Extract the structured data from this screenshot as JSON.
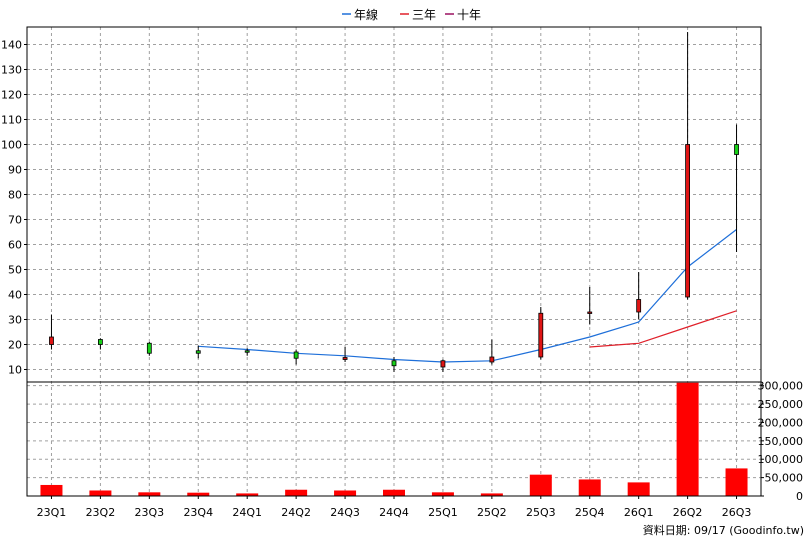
{
  "chart_data": {
    "type": "candlestick",
    "categories": [
      "23Q1",
      "23Q2",
      "23Q3",
      "23Q4",
      "24Q1",
      "24Q2",
      "24Q3",
      "24Q4",
      "25Q1",
      "25Q2",
      "25Q3",
      "25Q4",
      "26Q1",
      "26Q2",
      "26Q3"
    ],
    "legend": [
      {
        "name": "年線",
        "color": "#1e6fd9"
      },
      {
        "name": "三年",
        "color": "#e0202a"
      },
      {
        "name": "十年",
        "color": "#9a1060"
      }
    ],
    "price_axis": {
      "ylim": [
        5,
        147
      ],
      "ticks": [
        10,
        20,
        30,
        40,
        50,
        60,
        70,
        80,
        90,
        100,
        110,
        120,
        130,
        140
      ]
    },
    "volume_axis": {
      "ylim": [
        0,
        310000
      ],
      "ticks": [
        0,
        50000,
        100000,
        150000,
        200000,
        250000,
        300000
      ],
      "tick_labels": [
        "0",
        "50,000",
        "100,000",
        "150,000",
        "200,000",
        "250,000",
        "300,000"
      ]
    },
    "candles": [
      {
        "o": 20,
        "h": 32,
        "l": 18,
        "c": 23
      },
      {
        "o": 22,
        "h": 22.5,
        "l": 18,
        "c": 20
      },
      {
        "o": 20.5,
        "h": 21,
        "l": 15.5,
        "c": 16.5
      },
      {
        "o": 17.5,
        "h": 19.5,
        "l": 14.5,
        "c": 16.5
      },
      {
        "o": 17.5,
        "h": 18.5,
        "l": 15.5,
        "c": 17
      },
      {
        "o": 17,
        "h": 18,
        "l": 12,
        "c": 14.5
      },
      {
        "o": 14,
        "h": 19,
        "l": 13,
        "c": 14.8
      },
      {
        "o": 13.5,
        "h": 15,
        "l": 9,
        "c": 11.5
      },
      {
        "o": 11,
        "h": 14,
        "l": 9,
        "c": 13.5
      },
      {
        "o": 13,
        "h": 22,
        "l": 12,
        "c": 15
      },
      {
        "o": 15,
        "h": 35,
        "l": 14,
        "c": 32.5
      },
      {
        "o": 32.5,
        "h": 43,
        "l": 28,
        "c": 33
      },
      {
        "o": 33,
        "h": 49,
        "l": 30,
        "c": 38
      },
      {
        "o": 39,
        "h": 145,
        "l": 38,
        "c": 100
      },
      {
        "o": 100,
        "h": 108,
        "l": 57,
        "c": 96
      }
    ],
    "series": [
      {
        "legend_index": 0,
        "values": [
          null,
          null,
          null,
          19.3,
          18,
          16.5,
          15.5,
          14,
          13,
          13.5,
          18,
          23,
          29,
          51,
          66
        ]
      },
      {
        "legend_index": 1,
        "values": [
          null,
          null,
          null,
          null,
          null,
          null,
          null,
          null,
          null,
          null,
          null,
          19,
          20.5,
          27,
          33.5
        ]
      }
    ],
    "volume": [
      30000,
      15000,
      10000,
      9000,
      7000,
      17000,
      15000,
      17000,
      10000,
      7000,
      58000,
      45000,
      37000,
      308000,
      75000
    ],
    "footer": "資料日期: 09/17  (Goodinfo.tw)"
  }
}
